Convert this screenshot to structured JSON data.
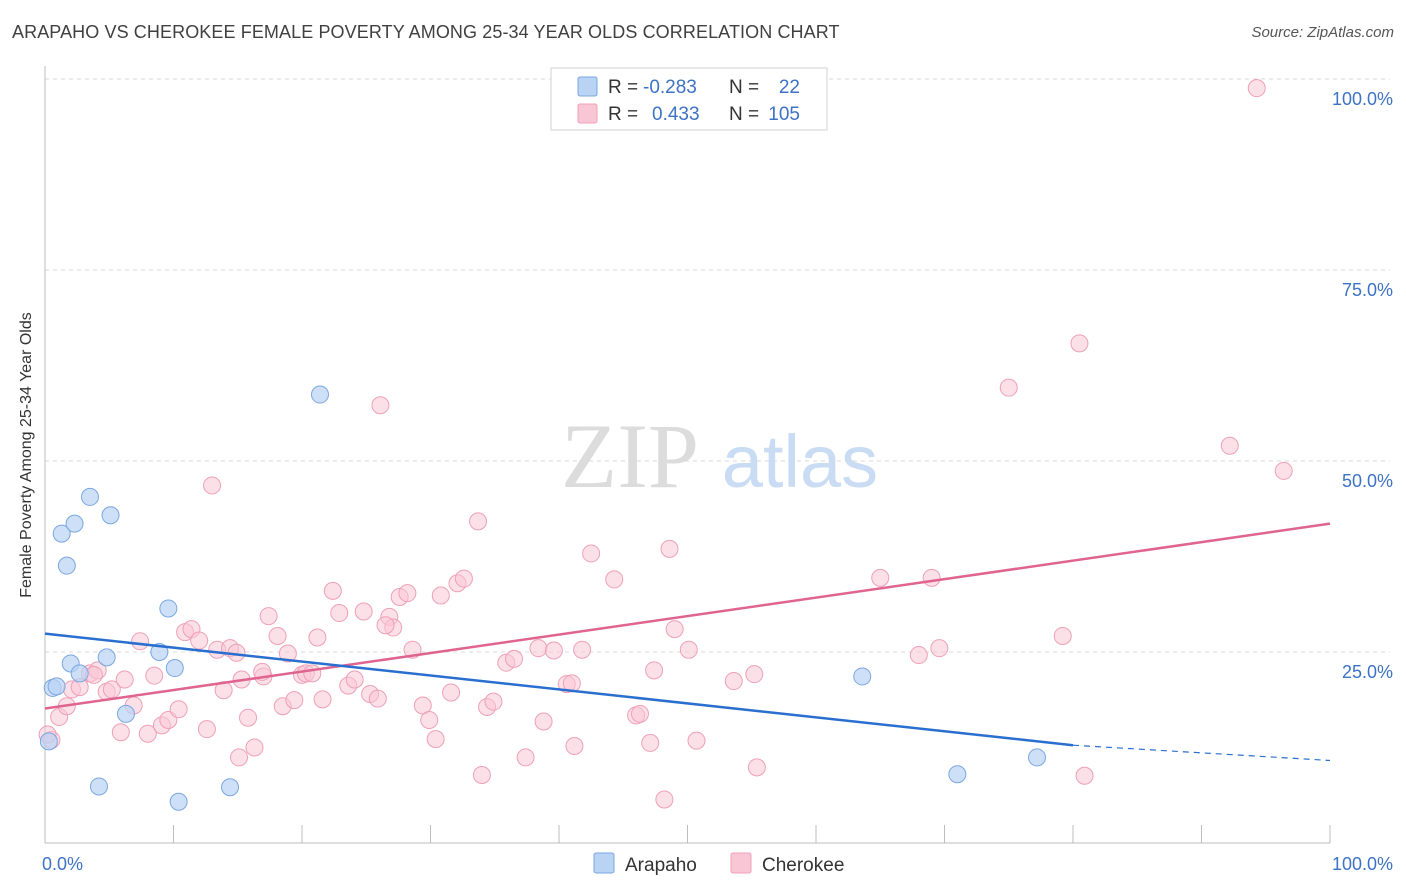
{
  "title": "ARAPAHO VS CHEROKEE FEMALE POVERTY AMONG 25-34 YEAR OLDS CORRELATION CHART",
  "source": "Source: ZipAtlas.com",
  "watermark": {
    "zip": "ZIP",
    "atlas": "atlas"
  },
  "legend": {
    "rows": [
      {
        "r_label": "R =",
        "r_value": "-0.283",
        "n_label": "N =",
        "n_value": "22"
      },
      {
        "r_label": "R =",
        "r_value": "0.433",
        "n_label": "N =",
        "n_value": "105"
      }
    ]
  },
  "bottom_legend": [
    "Arapaho",
    "Cherokee"
  ],
  "colors": {
    "arapaho_fill": "#b9d3f5",
    "arapaho_stroke": "#7aa7e0",
    "arapaho_line": "#2a6fcf",
    "cherokee_fill": "#f9c6d5",
    "cherokee_stroke": "#eea0b8",
    "cherokee_line": "#e06490",
    "tick_text": "#3d72c4"
  },
  "chart_data": {
    "type": "scatter",
    "title": "ARAPAHO VS CHEROKEE FEMALE POVERTY AMONG 25-34 YEAR OLDS CORRELATION CHART",
    "xlabel": "",
    "ylabel": "Female Poverty Among 25-34 Year Olds",
    "xlim": [
      0,
      100
    ],
    "ylim": [
      0,
      100
    ],
    "x_tick_labels": [
      "0.0%",
      "100.0%"
    ],
    "y_tick_labels": [
      "25.0%",
      "50.0%",
      "75.0%",
      "100.0%"
    ],
    "y_ticks": [
      25,
      50,
      75,
      100
    ],
    "grid": true,
    "legend_position": "top-center",
    "series": [
      {
        "name": "Arapaho",
        "r": -0.283,
        "n": 22,
        "trend": {
          "x": [
            0,
            80
          ],
          "y": [
            27.4,
            12.8
          ],
          "dashed_to": [
            100,
            10.8
          ]
        },
        "points": [
          [
            0.3,
            13.3
          ],
          [
            0.6,
            20.3
          ],
          [
            0.9,
            20.5
          ],
          [
            1.3,
            40.5
          ],
          [
            1.7,
            36.3
          ],
          [
            2.0,
            23.5
          ],
          [
            2.3,
            41.8
          ],
          [
            2.7,
            22.2
          ],
          [
            3.5,
            45.3
          ],
          [
            4.2,
            7.4
          ],
          [
            4.8,
            24.3
          ],
          [
            5.1,
            42.9
          ],
          [
            6.3,
            16.9
          ],
          [
            8.9,
            25.0
          ],
          [
            9.6,
            30.7
          ],
          [
            10.1,
            22.9
          ],
          [
            10.4,
            5.4
          ],
          [
            14.4,
            7.3
          ],
          [
            21.4,
            58.7
          ],
          [
            63.6,
            21.8
          ],
          [
            71.0,
            9.0
          ],
          [
            77.2,
            11.2
          ]
        ]
      },
      {
        "name": "Cherokee",
        "r": 0.433,
        "n": 105,
        "trend": {
          "x": [
            0,
            100
          ],
          "y": [
            17.6,
            41.8
          ]
        },
        "points": [
          [
            0.5,
            13.5
          ],
          [
            1.1,
            16.5
          ],
          [
            1.7,
            17.9
          ],
          [
            2.1,
            20.1
          ],
          [
            2.7,
            20.4
          ],
          [
            3.5,
            22.2
          ],
          [
            4.1,
            22.6
          ],
          [
            4.8,
            19.8
          ],
          [
            5.2,
            20.1
          ],
          [
            5.9,
            14.5
          ],
          [
            6.2,
            21.4
          ],
          [
            6.9,
            18.0
          ],
          [
            7.4,
            26.4
          ],
          [
            8.0,
            14.3
          ],
          [
            8.5,
            21.9
          ],
          [
            9.1,
            15.4
          ],
          [
            9.6,
            16.1
          ],
          [
            10.4,
            17.5
          ],
          [
            10.9,
            27.6
          ],
          [
            11.4,
            28.0
          ],
          [
            12.0,
            26.5
          ],
          [
            12.6,
            14.9
          ],
          [
            13.0,
            46.8
          ],
          [
            13.4,
            25.3
          ],
          [
            13.9,
            20.0
          ],
          [
            14.4,
            25.5
          ],
          [
            14.9,
            24.9
          ],
          [
            15.3,
            21.4
          ],
          [
            15.8,
            16.4
          ],
          [
            16.3,
            12.5
          ],
          [
            17.0,
            21.8
          ],
          [
            17.4,
            29.7
          ],
          [
            18.1,
            27.1
          ],
          [
            18.5,
            17.9
          ],
          [
            18.9,
            24.8
          ],
          [
            19.4,
            18.7
          ],
          [
            20.0,
            22.0
          ],
          [
            20.3,
            22.2
          ],
          [
            20.8,
            22.2
          ],
          [
            21.2,
            26.9
          ],
          [
            21.6,
            18.8
          ],
          [
            22.4,
            33.0
          ],
          [
            22.9,
            30.1
          ],
          [
            23.6,
            20.6
          ],
          [
            24.1,
            21.4
          ],
          [
            24.8,
            30.3
          ],
          [
            25.3,
            19.5
          ],
          [
            25.9,
            18.9
          ],
          [
            26.1,
            57.3
          ],
          [
            26.8,
            29.6
          ],
          [
            27.1,
            28.2
          ],
          [
            27.6,
            32.2
          ],
          [
            28.2,
            32.7
          ],
          [
            28.6,
            25.3
          ],
          [
            29.4,
            18.0
          ],
          [
            29.9,
            16.1
          ],
          [
            30.4,
            13.6
          ],
          [
            30.8,
            32.4
          ],
          [
            31.6,
            19.7
          ],
          [
            32.1,
            34.0
          ],
          [
            32.6,
            34.6
          ],
          [
            33.7,
            42.1
          ],
          [
            34.0,
            8.9
          ],
          [
            34.4,
            17.8
          ],
          [
            34.9,
            18.5
          ],
          [
            35.9,
            23.6
          ],
          [
            36.5,
            24.1
          ],
          [
            37.4,
            11.2
          ],
          [
            38.4,
            25.5
          ],
          [
            38.8,
            15.9
          ],
          [
            39.6,
            25.2
          ],
          [
            40.6,
            20.8
          ],
          [
            41.0,
            20.9
          ],
          [
            41.2,
            12.7
          ],
          [
            41.8,
            25.3
          ],
          [
            42.5,
            37.9
          ],
          [
            44.3,
            34.5
          ],
          [
            46.0,
            16.7
          ],
          [
            46.3,
            16.9
          ],
          [
            47.1,
            13.1
          ],
          [
            47.4,
            22.6
          ],
          [
            48.2,
            5.7
          ],
          [
            48.6,
            38.5
          ],
          [
            49.0,
            28.0
          ],
          [
            50.7,
            13.4
          ],
          [
            53.6,
            21.2
          ],
          [
            55.4,
            9.9
          ],
          [
            65.0,
            34.7
          ],
          [
            68.0,
            24.6
          ],
          [
            69.0,
            34.7
          ],
          [
            69.6,
            25.5
          ],
          [
            75.0,
            59.6
          ],
          [
            79.2,
            27.1
          ],
          [
            80.5,
            65.4
          ],
          [
            80.9,
            8.8
          ],
          [
            92.2,
            52.0
          ],
          [
            94.3,
            98.8
          ],
          [
            96.4,
            48.7
          ],
          [
            0.2,
            14.2
          ],
          [
            15.1,
            11.2
          ],
          [
            3.8,
            22.0
          ],
          [
            16.9,
            22.4
          ],
          [
            26.5,
            28.5
          ],
          [
            50.1,
            25.3
          ],
          [
            55.2,
            22.1
          ]
        ]
      }
    ]
  }
}
